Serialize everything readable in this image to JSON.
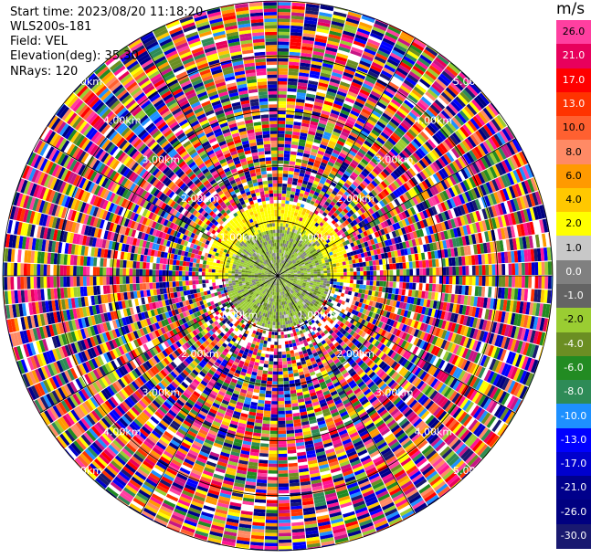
{
  "header": {
    "start_time": "Start time: 2023/08/20 11:18:20",
    "instrument": "WLS200s-181",
    "field": "Field: VEL",
    "elevation": "Elevation(deg): 35.30",
    "nrays": "NRays: 120"
  },
  "colorbar": {
    "unit": "m/s",
    "ticks": [
      "26.0",
      "21.0",
      "17.0",
      "13.0",
      "10.0",
      "8.0",
      "6.0",
      "4.0",
      "2.0",
      "1.0",
      "0.0",
      "-1.0",
      "-2.0",
      "-4.0",
      "-6.0",
      "-8.0",
      "-10.0",
      "-13.0",
      "-17.0",
      "-21.0",
      "-26.0",
      "-30.0"
    ],
    "colors": [
      "#ff3fa0",
      "#e8005c",
      "#ff0000",
      "#ff3300",
      "#ff6030",
      "#ff8a65",
      "#ff9a00",
      "#ffc800",
      "#ffff00",
      "#c8c8c8",
      "#808080",
      "#646464",
      "#9acd32",
      "#6b8e23",
      "#228b22",
      "#2e8b57",
      "#1e90ff",
      "#0000ff",
      "#0000cd",
      "#00008b",
      "#000080",
      "#191970"
    ]
  },
  "chart_data": {
    "type": "heatmap",
    "projection": "polar PPI",
    "field": "VEL",
    "units": "m/s",
    "elevation_deg": 35.3,
    "nrays": 120,
    "range_rings_km": [
      1.0,
      2.0,
      3.0,
      4.0,
      5.0
    ],
    "range_ring_labels": [
      "1.00km",
      "2.00km",
      "3.00km",
      "4.00km",
      "5.00km"
    ],
    "clim": [
      -30.0,
      26.0
    ],
    "near_field": "0-1 km mostly -2 to 0 m/s (olive/grey); 1.0-1.3 km north half +2 to +4 m/s (yellow)",
    "far_field": "noise, all values -30 to 26 m/s"
  }
}
